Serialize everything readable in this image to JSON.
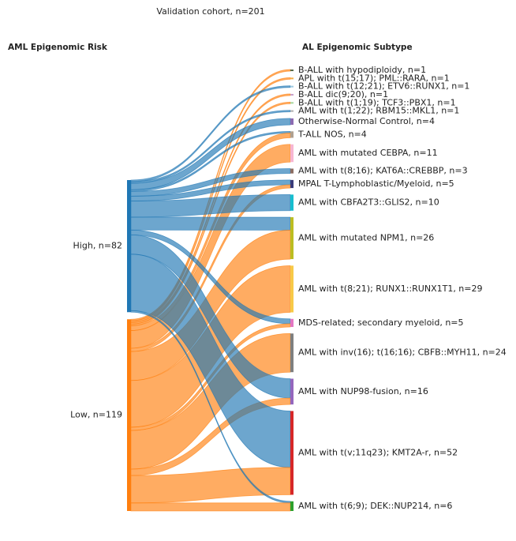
{
  "chart_data": {
    "type": "sankey",
    "title": "Validation cohort, n=201",
    "left_header": "AML Epigenomic Risk",
    "right_header": "AL Epigenomic Subtype",
    "sources": [
      {
        "label": "High, n=82",
        "color": "#1f77b4"
      },
      {
        "label": "Low, n=119",
        "color": "#ff7f0e"
      }
    ],
    "targets": [
      {
        "label": "B-ALL with hypodiploidy, n=1",
        "color": "#5a6b4a"
      },
      {
        "label": "APL with t(15;17); PML::RARA, n=1",
        "color": "#f5b04b"
      },
      {
        "label": "B-ALL with t(12;21); ETV6::RUNX1, n=1",
        "color": "#9ecae1"
      },
      {
        "label": "B-ALL dic(9;20), n=1",
        "color": "#c9a0c9"
      },
      {
        "label": "B-ALL with t(1;19); TCF3::PBX1, n=1",
        "color": "#a8d8a0"
      },
      {
        "label": "AML with t(1;22); RBM15::MKL1, n=1",
        "color": "#b0b0b0"
      },
      {
        "label": "Otherwise-Normal Control, n=4",
        "color": "#8c6bb1"
      },
      {
        "label": "T-ALL NOS, n=4",
        "color": "#b0a090"
      },
      {
        "label": "AML with mutated CEBPA, n=11",
        "color": "#f7b6d2"
      },
      {
        "label": "AML with t(8;16); KAT6A::CREBBP, n=3",
        "color": "#8c6d62"
      },
      {
        "label": "MPAL T-Lymphoblastic/Myeloid, n=5",
        "color": "#393b79"
      },
      {
        "label": "AML with CBFA2T3::GLIS2, n=10",
        "color": "#17becf"
      },
      {
        "label": "AML with mutated NPM1, n=26",
        "color": "#bcbd22"
      },
      {
        "label": "AML with t(8;21); RUNX1::RUNX1T1, n=29",
        "color": "#f7c948"
      },
      {
        "label": "MDS-related; secondary myeloid, n=5",
        "color": "#e377c2"
      },
      {
        "label": "AML with inv(16); t(16;16); CBFB::MYH11, n=24",
        "color": "#7f7f7f"
      },
      {
        "label": "AML with NUP98-fusion, n=16",
        "color": "#9467bd"
      },
      {
        "label": "AML with t(v;11q23); KMT2A-r, n=52",
        "color": "#d62728"
      },
      {
        "label": "AML with t(6;9); DEK::NUP214, n=6",
        "color": "#2ca02c"
      }
    ],
    "links": [
      {
        "source": 1,
        "target": 0,
        "value": 1
      },
      {
        "source": 1,
        "target": 1,
        "value": 1
      },
      {
        "source": 0,
        "target": 2,
        "value": 1
      },
      {
        "source": 1,
        "target": 3,
        "value": 1
      },
      {
        "source": 1,
        "target": 4,
        "value": 1
      },
      {
        "source": 0,
        "target": 5,
        "value": 1
      },
      {
        "source": 0,
        "target": 6,
        "value": 4
      },
      {
        "source": 0,
        "target": 7,
        "value": 1
      },
      {
        "source": 1,
        "target": 7,
        "value": 3
      },
      {
        "source": 1,
        "target": 8,
        "value": 11
      },
      {
        "source": 0,
        "target": 9,
        "value": 3
      },
      {
        "source": 0,
        "target": 10,
        "value": 3
      },
      {
        "source": 1,
        "target": 10,
        "value": 2
      },
      {
        "source": 0,
        "target": 11,
        "value": 10
      },
      {
        "source": 0,
        "target": 12,
        "value": 8
      },
      {
        "source": 1,
        "target": 12,
        "value": 18
      },
      {
        "source": 1,
        "target": 13,
        "value": 29
      },
      {
        "source": 0,
        "target": 14,
        "value": 3
      },
      {
        "source": 1,
        "target": 14,
        "value": 2
      },
      {
        "source": 1,
        "target": 15,
        "value": 24
      },
      {
        "source": 0,
        "target": 16,
        "value": 12
      },
      {
        "source": 1,
        "target": 16,
        "value": 4
      },
      {
        "source": 0,
        "target": 17,
        "value": 35
      },
      {
        "source": 1,
        "target": 17,
        "value": 17
      },
      {
        "source": 0,
        "target": 18,
        "value": 1
      },
      {
        "source": 1,
        "target": 18,
        "value": 5
      }
    ]
  }
}
